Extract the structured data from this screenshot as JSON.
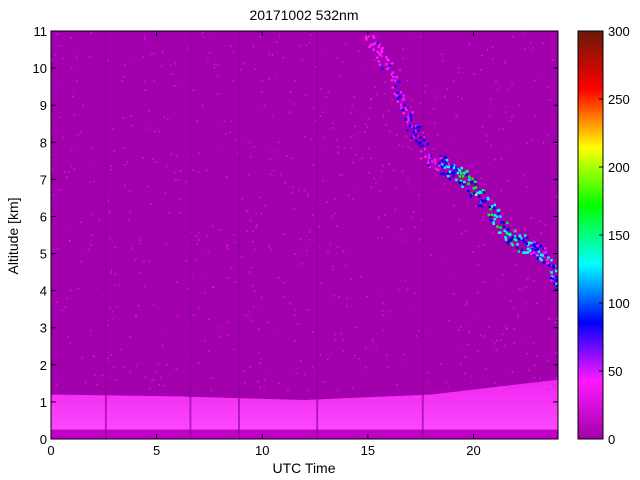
{
  "chart_data": {
    "type": "heatmap",
    "title": "20171002 532nm",
    "xlabel": "UTC Time",
    "ylabel": "Altitude [km]",
    "xlim": [
      0,
      24
    ],
    "ylim": [
      0,
      11
    ],
    "x_ticks": [
      0,
      5,
      10,
      15,
      20
    ],
    "y_ticks": [
      0,
      1,
      2,
      3,
      4,
      5,
      6,
      7,
      8,
      9,
      10,
      11
    ],
    "colorbar": {
      "range": [
        0,
        300
      ],
      "ticks": [
        0,
        50,
        100,
        150,
        200,
        250,
        300
      ],
      "colors": [
        "#a000a8",
        "#ff19ff",
        "#0000ff",
        "#00ffff",
        "#00ff00",
        "#ffff00",
        "#ff0000",
        "#6a1a0a"
      ]
    },
    "background_level": 15,
    "boundary_layer": [
      {
        "x": 0,
        "top_altitude": 1.2
      },
      {
        "x": 6,
        "top_altitude": 1.15
      },
      {
        "x": 12,
        "top_altitude": 1.05
      },
      {
        "x": 18,
        "top_altitude": 1.2
      },
      {
        "x": 24,
        "top_altitude": 1.6
      }
    ],
    "cloud_layer": [
      {
        "x": 14.8,
        "altitude": 11.0,
        "value": 60
      },
      {
        "x": 16.0,
        "altitude": 10.0,
        "value": 70
      },
      {
        "x": 17.0,
        "altitude": 8.5,
        "value": 80
      },
      {
        "x": 18.0,
        "altitude": 7.5,
        "value": 90
      },
      {
        "x": 19.0,
        "altitude": 7.3,
        "value": 150
      },
      {
        "x": 20.0,
        "altitude": 6.8,
        "value": 200
      },
      {
        "x": 21.0,
        "altitude": 6.0,
        "value": 150
      },
      {
        "x": 22.0,
        "altitude": 5.3,
        "value": 160
      },
      {
        "x": 23.0,
        "altitude": 5.2,
        "value": 120
      },
      {
        "x": 24.0,
        "altitude": 4.2,
        "value": 150
      }
    ],
    "profile_gaps": [
      2.6,
      6.6,
      8.9,
      12.6,
      17.6
    ]
  }
}
